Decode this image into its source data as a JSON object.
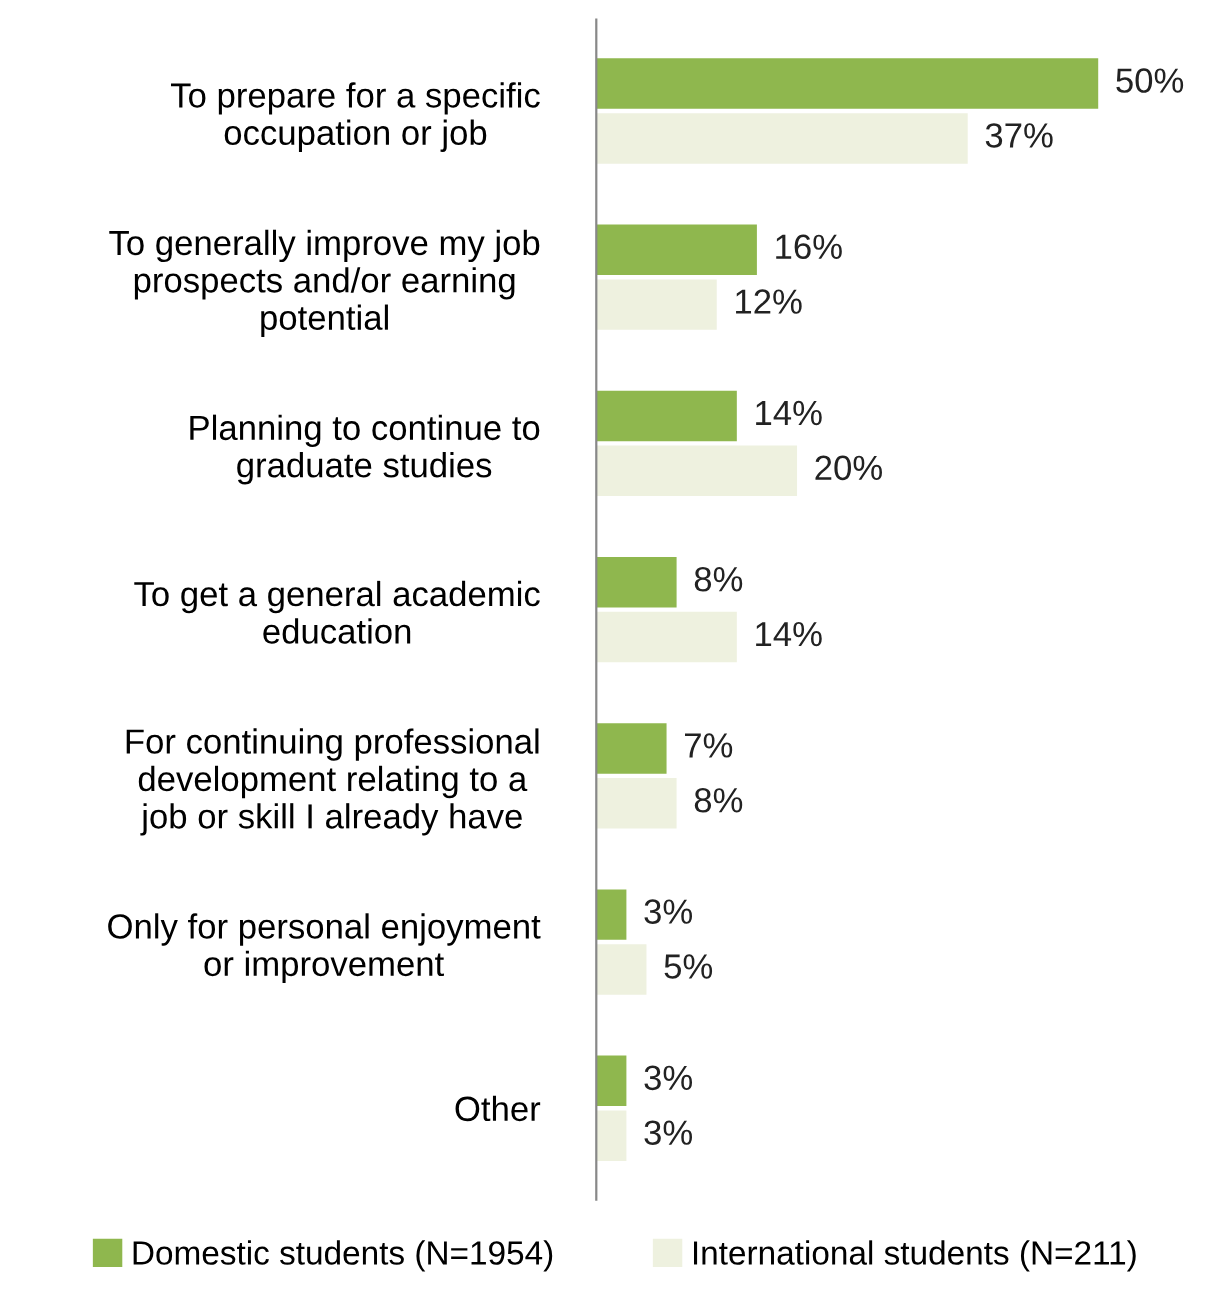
{
  "chart_data": {
    "type": "bar",
    "orientation": "horizontal",
    "categories": [
      "To prepare for a specific\noccupation or job",
      "To generally improve my job\nprospects and/or earning\npotential",
      "Planning to continue to\ngraduate studies",
      "To get a general academic\neducation",
      "For continuing professional\ndevelopment relating to a\njob or skill I already have",
      "Only for personal enjoyment\nor improvement",
      "Other"
    ],
    "series": [
      {
        "name": "Domestic students (N=1954)",
        "color": "#8fb74e",
        "values": [
          50,
          16,
          14,
          8,
          7,
          3,
          3
        ],
        "value_labels": [
          "50%",
          "16%",
          "14%",
          "8%",
          "7%",
          "3%",
          "3%"
        ]
      },
      {
        "name": "International students (N=211)",
        "color": "#eef1df",
        "values": [
          37,
          12,
          20,
          14,
          8,
          5,
          3
        ],
        "value_labels": [
          "37%",
          "12%",
          "20%",
          "14%",
          "8%",
          "5%",
          "3%"
        ]
      }
    ],
    "legend": "bottom",
    "tick_labels": "y",
    "grid": false
  }
}
